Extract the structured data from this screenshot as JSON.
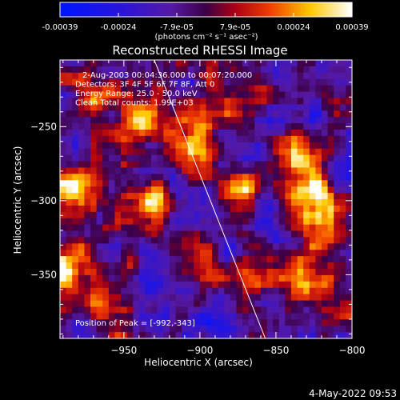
{
  "colorbar": {
    "ticks": [
      "-0.00039",
      "-0.00024",
      "-7.9e-05",
      "7.9e-05",
      "0.00024",
      "0.00039"
    ],
    "unit_label": "(photons cm⁻² s⁻¹ asec⁻²)",
    "range": [
      -0.00039,
      0.00039
    ]
  },
  "chart_data": {
    "type": "heatmap",
    "title": "Reconstructed RHESSI Image",
    "xlabel": "Heliocentric X (arcsec)",
    "ylabel": "Heliocentric Y (arcsec)",
    "xlim": [
      -992,
      -800
    ],
    "ylim": [
      -393,
      -205
    ],
    "x_ticks": [
      -950,
      -900,
      -850,
      -800
    ],
    "y_ticks": [
      -250,
      -300,
      -350
    ],
    "x_tick_labels": [
      "−950",
      "−900",
      "−850",
      "−800"
    ],
    "y_tick_labels": [
      "−250",
      "−300",
      "−350"
    ],
    "info_lines": [
      "2-Aug-2003 00:04:36.000 to 00:07:20.000",
      "Detectors: 3F 4F 5F 6F 7F 8F, Att 0",
      "Energy Range: 25.0 - 50.0 keV",
      "Clean    Total counts: 1.99E+03"
    ],
    "peak_label": "Position of Peak = [-992,-343]",
    "peak": [
      -992,
      -343
    ],
    "limb_line": [
      [
        -930,
        -205
      ],
      [
        -857,
        -393
      ]
    ],
    "bright_sources": [
      {
        "x": -992,
        "y": -343,
        "intensity": 1.0
      },
      {
        "x": -825,
        "y": -295,
        "intensity": 0.95
      },
      {
        "x": -985,
        "y": -290,
        "intensity": 0.85
      },
      {
        "x": -905,
        "y": -262,
        "intensity": 0.8
      },
      {
        "x": -935,
        "y": -300,
        "intensity": 0.75
      },
      {
        "x": -940,
        "y": -245,
        "intensity": 0.75
      },
      {
        "x": -836,
        "y": -270,
        "intensity": 0.8
      },
      {
        "x": -878,
        "y": -295,
        "intensity": 0.7
      },
      {
        "x": -905,
        "y": -340,
        "intensity": 0.65
      },
      {
        "x": -835,
        "y": -355,
        "intensity": 0.7
      },
      {
        "x": -960,
        "y": -370,
        "intensity": 0.55
      },
      {
        "x": -820,
        "y": -320,
        "intensity": 0.7
      },
      {
        "x": -965,
        "y": -230,
        "intensity": 0.5
      },
      {
        "x": -870,
        "y": -350,
        "intensity": 0.45
      },
      {
        "x": -880,
        "y": -235,
        "intensity": 0.45
      }
    ],
    "dim_regions": [
      {
        "x": -900,
        "y": -300,
        "intensity": -0.7
      },
      {
        "x": -920,
        "y": -355,
        "intensity": -0.9
      },
      {
        "x": -865,
        "y": -320,
        "intensity": -0.6
      },
      {
        "x": -890,
        "y": -380,
        "intensity": -0.6
      },
      {
        "x": -860,
        "y": -255,
        "intensity": -0.55
      }
    ]
  },
  "timestamp": "4-May-2022 09:53"
}
